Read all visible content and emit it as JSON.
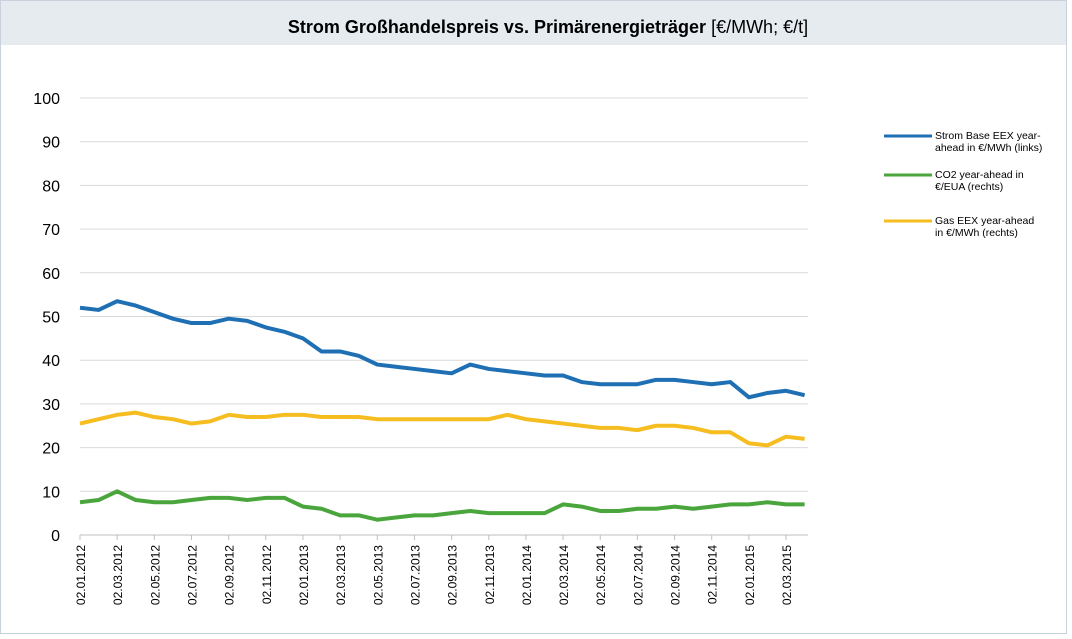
{
  "chart_data": {
    "type": "line",
    "title": "Strom Großhandelspreis vs. Primärenergieträger",
    "title_unit": "[€/MWh; €/t]",
    "x": [
      "02.01.2012",
      "02.02.2012",
      "02.03.2012",
      "02.04.2012",
      "02.05.2012",
      "02.06.2012",
      "02.07.2012",
      "02.08.2012",
      "02.09.2012",
      "02.10.2012",
      "02.11.2012",
      "02.12.2012",
      "02.01.2013",
      "02.02.2013",
      "02.03.2013",
      "02.04.2013",
      "02.05.2013",
      "02.06.2013",
      "02.07.2013",
      "02.08.2013",
      "02.09.2013",
      "02.10.2013",
      "02.11.2013",
      "02.12.2013",
      "02.01.2014",
      "02.02.2014",
      "02.03.2014",
      "02.04.2014",
      "02.05.2014",
      "02.06.2014",
      "02.07.2014",
      "02.08.2014",
      "02.09.2014",
      "02.10.2014",
      "02.11.2014",
      "02.12.2014",
      "02.01.2015",
      "02.02.2015",
      "02.03.2015",
      "02.04.2015"
    ],
    "xticks": [
      "02.01.2012",
      "02.03.2012",
      "02.05.2012",
      "02.07.2012",
      "02.09.2012",
      "02.11.2012",
      "02.01.2013",
      "02.03.2013",
      "02.05.2013",
      "02.07.2013",
      "02.09.2013",
      "02.11.2013",
      "02.01.2014",
      "02.03.2014",
      "02.05.2014",
      "02.07.2014",
      "02.09.2014",
      "02.11.2014",
      "02.01.2015",
      "02.03.2015"
    ],
    "series": [
      {
        "name": "Strom Base EEX year-ahead in €/MWh (links)",
        "color": "#1f6fb4",
        "values": [
          52,
          51.5,
          53.5,
          52.5,
          51,
          49.5,
          48.5,
          48.5,
          49.5,
          49,
          47.5,
          46.5,
          45,
          42,
          42,
          41,
          39,
          38.5,
          38,
          37.5,
          37,
          39,
          38,
          37.5,
          37,
          36.5,
          36.5,
          35,
          34.5,
          34.5,
          34.5,
          35.5,
          35.5,
          35,
          34.5,
          35,
          31.5,
          32.5,
          33,
          32
        ]
      },
      {
        "name": "CO2 year-ahead in €/EUA (rechts)",
        "color": "#4aa63c",
        "values": [
          7.5,
          8,
          10,
          8,
          7.5,
          7.5,
          8,
          8.5,
          8.5,
          8,
          8.5,
          8.5,
          6.5,
          6,
          4.5,
          4.5,
          3.5,
          4,
          4.5,
          4.5,
          5,
          5.5,
          5,
          5,
          5,
          5,
          7,
          6.5,
          5.5,
          5.5,
          6,
          6,
          6.5,
          6,
          6.5,
          7,
          7,
          7.5,
          7,
          7
        ]
      },
      {
        "name": "Gas EEX year-ahead in €/MWh (rechts)",
        "color": "#f5bd1f",
        "values": [
          25.5,
          26.5,
          27.5,
          28,
          27,
          26.5,
          25.5,
          26,
          27.5,
          27,
          27,
          27.5,
          27.5,
          27,
          27,
          27,
          26.5,
          26.5,
          26.5,
          26.5,
          26.5,
          26.5,
          26.5,
          27.5,
          26.5,
          26,
          25.5,
          25,
          24.5,
          24.5,
          24,
          25,
          25,
          24.5,
          23.5,
          23.5,
          21,
          20.5,
          22.5,
          22
        ]
      }
    ],
    "ylim": [
      0,
      100
    ],
    "yticks": [
      0,
      10,
      20,
      30,
      40,
      50,
      60,
      70,
      80,
      90,
      100
    ],
    "grid": true
  }
}
